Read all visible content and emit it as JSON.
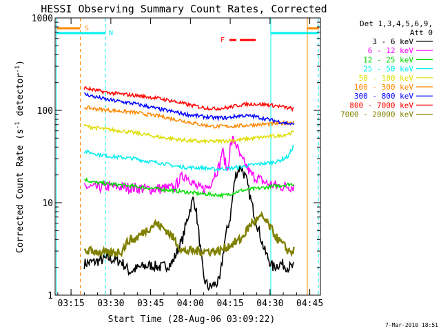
{
  "chart_data": {
    "type": "line",
    "title": "HESSI Observing Summary Count Rates, Corrected",
    "xlabel": "Start Time (28-Aug-06 03:09:22)",
    "ylabel_main": "Corrected Count Rate (s",
    "ylabel_sup1": "-1",
    "ylabel_mid": " detector",
    "ylabel_sup2": "-1",
    "ylabel_end": ")",
    "yscale": "log",
    "ylim": [
      1,
      1000
    ],
    "xlim_minutes": [
      0,
      100
    ],
    "x_ticks": [
      {
        "t": 6,
        "label": "03:15"
      },
      {
        "t": 21,
        "label": "03:30"
      },
      {
        "t": 36,
        "label": "03:45"
      },
      {
        "t": 51,
        "label": "04:00"
      },
      {
        "t": 66,
        "label": "04:15"
      },
      {
        "t": 81,
        "label": "04:30"
      },
      {
        "t": 96,
        "label": "04:45"
      }
    ],
    "y_ticks": [
      {
        "v": 1,
        "label": "1"
      },
      {
        "v": 10,
        "label": "10"
      },
      {
        "v": 100,
        "label": "100"
      },
      {
        "v": 1000,
        "label": "1000"
      }
    ],
    "legend": {
      "placement": "right",
      "header_line1": "Det 1,3,4,5,6,9,",
      "header_line2": "Att 0"
    },
    "series": [
      {
        "name": "3 - 6 keV",
        "color": "#000000",
        "x": [
          11,
          15,
          20,
          25,
          28,
          32,
          36,
          40,
          44,
          48,
          50,
          52,
          53,
          54,
          56,
          58,
          60,
          62,
          64,
          66,
          67,
          68,
          70,
          72,
          74,
          76,
          79,
          82,
          85,
          88,
          90
        ],
        "y": [
          2.2,
          2.3,
          2.5,
          2.3,
          1.8,
          2.0,
          2.1,
          2.0,
          2.2,
          4,
          7,
          11,
          9,
          5,
          1.5,
          1.2,
          1.3,
          1.4,
          4,
          7,
          12,
          20,
          25,
          18,
          10,
          6,
          3,
          2,
          2.2,
          2,
          2
        ]
      },
      {
        "name": "6 - 12 keV",
        "color": "#ff00ff",
        "x": [
          11,
          15,
          20,
          25,
          30,
          35,
          40,
          45,
          47,
          49,
          51,
          53,
          55,
          58,
          60,
          62,
          63,
          64,
          65,
          66,
          67,
          68,
          70,
          72,
          74,
          77,
          80,
          85,
          90
        ],
        "y": [
          15,
          14.5,
          15,
          14.8,
          14.5,
          14,
          14.2,
          14.5,
          18,
          20,
          18,
          15,
          14,
          15,
          20,
          25,
          38,
          28,
          22,
          40,
          48,
          45,
          30,
          25,
          20,
          18,
          16,
          15,
          15
        ]
      },
      {
        "name": "12 - 25 keV",
        "color": "#00dd00",
        "x": [
          11,
          15,
          20,
          25,
          30,
          35,
          40,
          45,
          50,
          55,
          60,
          64,
          66,
          68,
          70,
          74,
          78,
          82,
          86,
          90
        ],
        "y": [
          18,
          16.5,
          16,
          15.5,
          15,
          14.5,
          14,
          13.5,
          13,
          12.5,
          12.2,
          12,
          12.5,
          13,
          13.5,
          14,
          14.5,
          15,
          15.5,
          16
        ]
      },
      {
        "name": "25 - 50 keV",
        "color": "#00eeee",
        "x": [
          11,
          15,
          20,
          25,
          30,
          35,
          40,
          45,
          50,
          55,
          60,
          65,
          68,
          72,
          76,
          80,
          84,
          88,
          90
        ],
        "y": [
          36,
          34,
          32,
          31,
          30,
          28,
          27,
          25,
          24,
          24,
          23,
          23.5,
          24,
          25,
          26,
          27,
          28,
          32,
          42
        ]
      },
      {
        "name": "50 - 100 keV",
        "color": "#dddd00",
        "x": [
          11,
          15,
          20,
          25,
          30,
          35,
          40,
          45,
          50,
          55,
          60,
          65,
          70,
          75,
          80,
          85,
          90
        ],
        "y": [
          68,
          65,
          62,
          60,
          57,
          54,
          51,
          49,
          47,
          46,
          46,
          47,
          48,
          50,
          52,
          53,
          58
        ]
      },
      {
        "name": "100 - 300 keV",
        "color": "#ff8800",
        "x": [
          11,
          15,
          20,
          25,
          30,
          35,
          40,
          45,
          50,
          55,
          60,
          65,
          70,
          75,
          80,
          85,
          90
        ],
        "y": [
          108,
          104,
          100,
          98,
          95,
          90,
          86,
          80,
          75,
          70,
          67,
          67,
          68,
          70,
          71,
          72,
          75
        ]
      },
      {
        "name": "300 - 800 keV",
        "color": "#0000ff",
        "x": [
          11,
          15,
          20,
          25,
          30,
          35,
          40,
          45,
          50,
          55,
          60,
          65,
          70,
          75,
          80,
          85,
          90
        ],
        "y": [
          150,
          140,
          130,
          124,
          118,
          110,
          102,
          96,
          90,
          86,
          83,
          83,
          88,
          86,
          80,
          75,
          70
        ]
      },
      {
        "name": "800 - 7000 keV",
        "color": "#ff0000",
        "x": [
          11,
          15,
          20,
          25,
          30,
          35,
          40,
          45,
          50,
          55,
          60,
          65,
          70,
          75,
          80,
          85,
          90
        ],
        "y": [
          175,
          165,
          155,
          150,
          145,
          140,
          133,
          125,
          115,
          108,
          104,
          107,
          115,
          117,
          115,
          110,
          103
        ]
      },
      {
        "name": "7000 - 20000 keV",
        "color": "#808000",
        "x": [
          11,
          15,
          20,
          25,
          28,
          30,
          34,
          38,
          42,
          45,
          48,
          50,
          54,
          58,
          62,
          66,
          70,
          74,
          78,
          80,
          84,
          88,
          90
        ],
        "y": [
          3,
          3,
          2.8,
          3,
          4,
          4,
          5,
          6,
          5,
          4,
          3,
          3,
          3,
          3,
          3,
          3.5,
          4,
          6,
          7,
          6,
          4,
          3,
          3
        ]
      }
    ],
    "annotations": [
      {
        "label": "S",
        "color": "#ff8800"
      },
      {
        "label": "N",
        "color": "#00eeee"
      },
      {
        "label": "F",
        "color": "#ff0000"
      }
    ],
    "footer_date": "7-Mar-2010 18:51"
  }
}
